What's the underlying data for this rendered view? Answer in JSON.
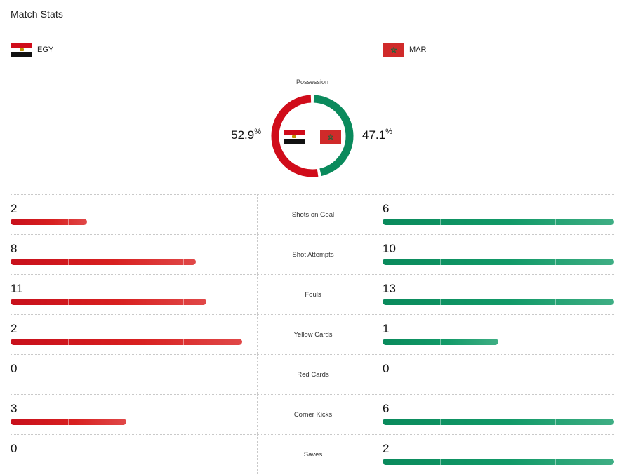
{
  "title": "Match Stats",
  "home": {
    "abbr": "EGY",
    "color": "#d00c1a"
  },
  "away": {
    "abbr": "MAR",
    "color": "#0a8a5c"
  },
  "possession": {
    "label": "Possession",
    "home_value": "52.9",
    "away_value": "47.1",
    "unit": "%",
    "home_fraction": 0.529,
    "away_fraction": 0.471
  },
  "stats": [
    {
      "label": "Shots on Goal",
      "home": "2",
      "away": "6",
      "home_fill": 0.127,
      "away_fill": 0.384
    },
    {
      "label": "Shot Attempts",
      "home": "8",
      "away": "10",
      "home_fill": 0.307,
      "away_fill": 0.384
    },
    {
      "label": "Fouls",
      "home": "11",
      "away": "13",
      "home_fill": 0.324,
      "away_fill": 0.384
    },
    {
      "label": "Yellow Cards",
      "home": "2",
      "away": "1",
      "home_fill": 0.384,
      "away_fill": 0.192
    },
    {
      "label": "Red Cards",
      "home": "0",
      "away": "0",
      "home_fill": 0,
      "away_fill": 0
    },
    {
      "label": "Corner Kicks",
      "home": "3",
      "away": "6",
      "home_fill": 0.192,
      "away_fill": 0.384
    },
    {
      "label": "Saves",
      "home": "0",
      "away": "2",
      "home_fill": 0,
      "away_fill": 0.384
    }
  ]
}
